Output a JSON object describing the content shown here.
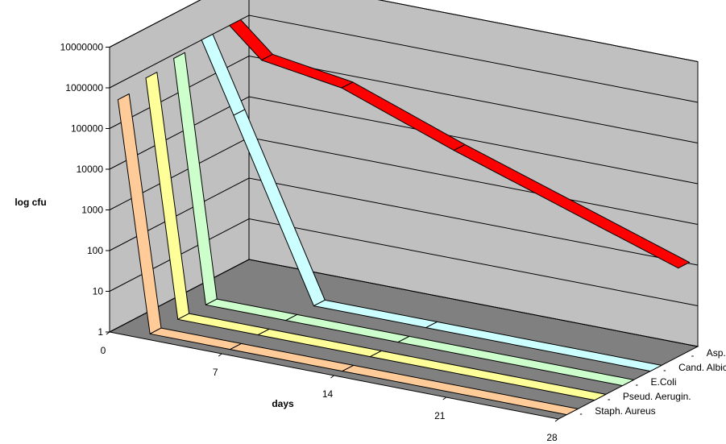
{
  "chart_data": {
    "type": "line",
    "subtype": "3d-ribbon",
    "xlabel": "days",
    "ylabel": "log cfu",
    "y_scale": "log",
    "ylim": [
      1,
      10000000
    ],
    "y_ticks": [
      "1",
      "10",
      "100",
      "1000",
      "10000",
      "100000",
      "1000000",
      "10000000"
    ],
    "x": [
      0,
      2,
      7,
      14,
      28
    ],
    "x_tick_labels": [
      "0",
      "7",
      "14",
      "21",
      "28"
    ],
    "grid": true,
    "series": [
      {
        "name": "Staph. Aureus",
        "color": "#FFCC99",
        "values": [
          400000,
          1,
          1,
          1,
          1
        ]
      },
      {
        "name": "Pseud. Aerugin.",
        "color": "#FFFF99",
        "values": [
          600000,
          1,
          1,
          1,
          1
        ]
      },
      {
        "name": "E.Coli",
        "color": "#CCFFCC",
        "values": [
          800000,
          1,
          1,
          1,
          1
        ]
      },
      {
        "name": "Cand. Albic.",
        "color": "#CCFFFF",
        "values": [
          1000000,
          20000,
          1,
          1,
          1
        ]
      },
      {
        "name": "Asp. Niger",
        "color": "#FF0000",
        "values": [
          1000000,
          200000,
          100000,
          10000,
          150
        ]
      }
    ]
  }
}
